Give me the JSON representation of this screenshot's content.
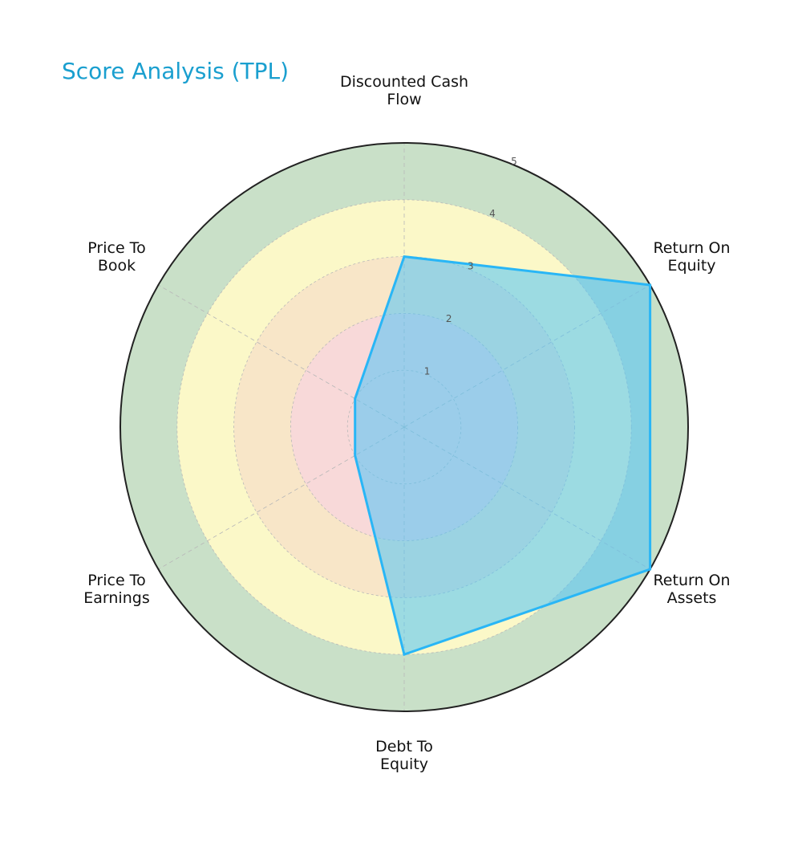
{
  "chart_data": {
    "type": "radar",
    "title": "Score Analysis (TPL)",
    "categories": [
      [
        "Discounted Cash",
        "Flow"
      ],
      [
        "Return On",
        "Equity"
      ],
      [
        "Return On",
        "Assets"
      ],
      [
        "Debt To",
        "Equity"
      ],
      [
        "Price To",
        "Earnings"
      ],
      [
        "Price To",
        "Book"
      ]
    ],
    "series": [
      {
        "values": [
          3,
          5,
          5,
          4,
          1,
          1
        ]
      }
    ],
    "rlim": [
      0,
      5
    ],
    "ticks": [
      1,
      2,
      3,
      4,
      5
    ],
    "tick_labels": [
      "1",
      "2",
      "3",
      "4",
      "5"
    ],
    "bands": [
      {
        "from": 0,
        "to": 2,
        "color": "#f8d9d9"
      },
      {
        "from": 2,
        "to": 3,
        "color": "#f8e6c8"
      },
      {
        "from": 3,
        "to": 4,
        "color": "#fbf8c8"
      },
      {
        "from": 4,
        "to": 5,
        "color": "#c9e0c8"
      }
    ],
    "series_color": "#29b6f6",
    "series_fill": "#4fc3f7",
    "title_color": "#1a9fcf",
    "grid": true
  }
}
